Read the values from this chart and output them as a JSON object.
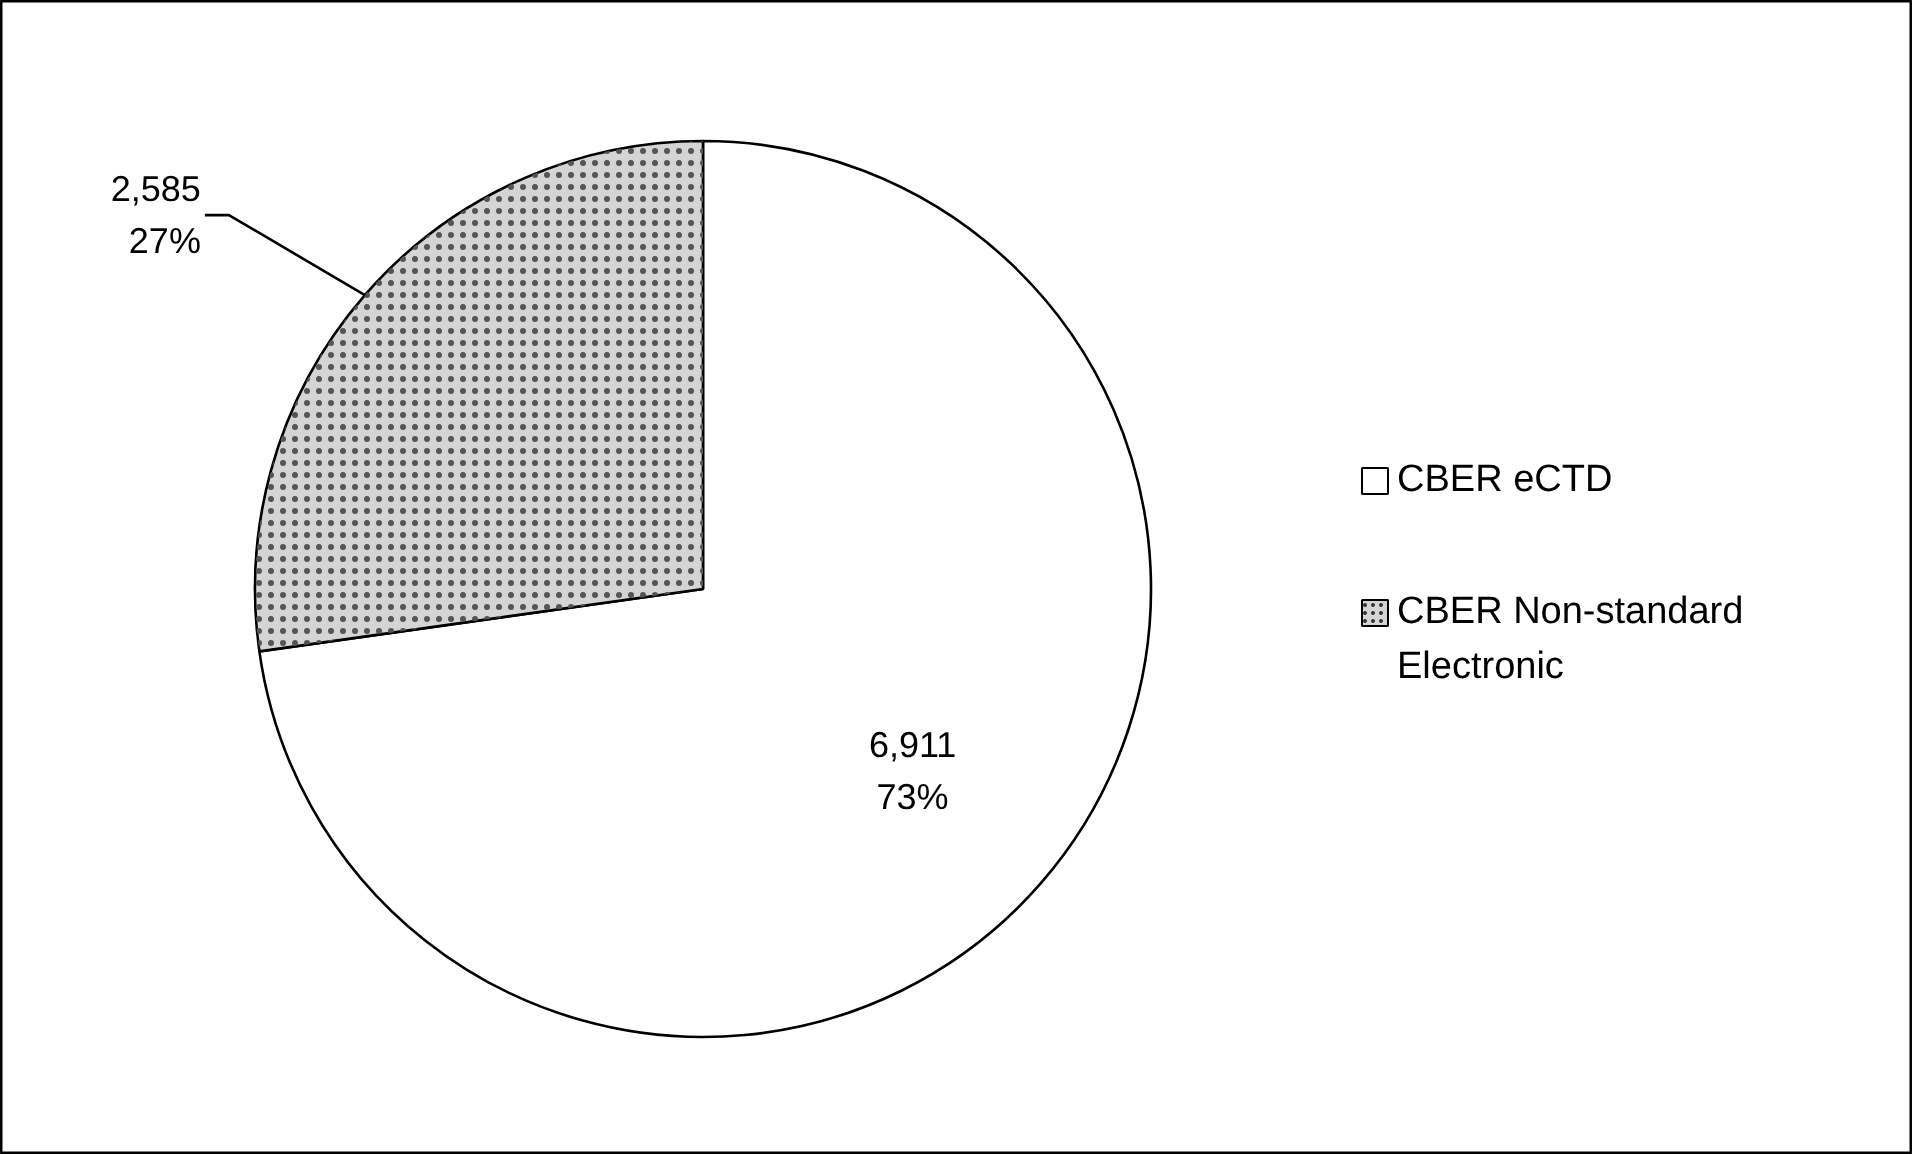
{
  "chart_data": {
    "type": "pie",
    "categories": [
      "CBER eCTD",
      "CBER Non-standard Electronic"
    ],
    "values": [
      6911,
      2585
    ],
    "colors": [
      "#ffffff",
      "#d4d4d4"
    ],
    "value_labels": [
      "6,911\n73%",
      "2,585\n27%"
    ],
    "legend": "right"
  }
}
